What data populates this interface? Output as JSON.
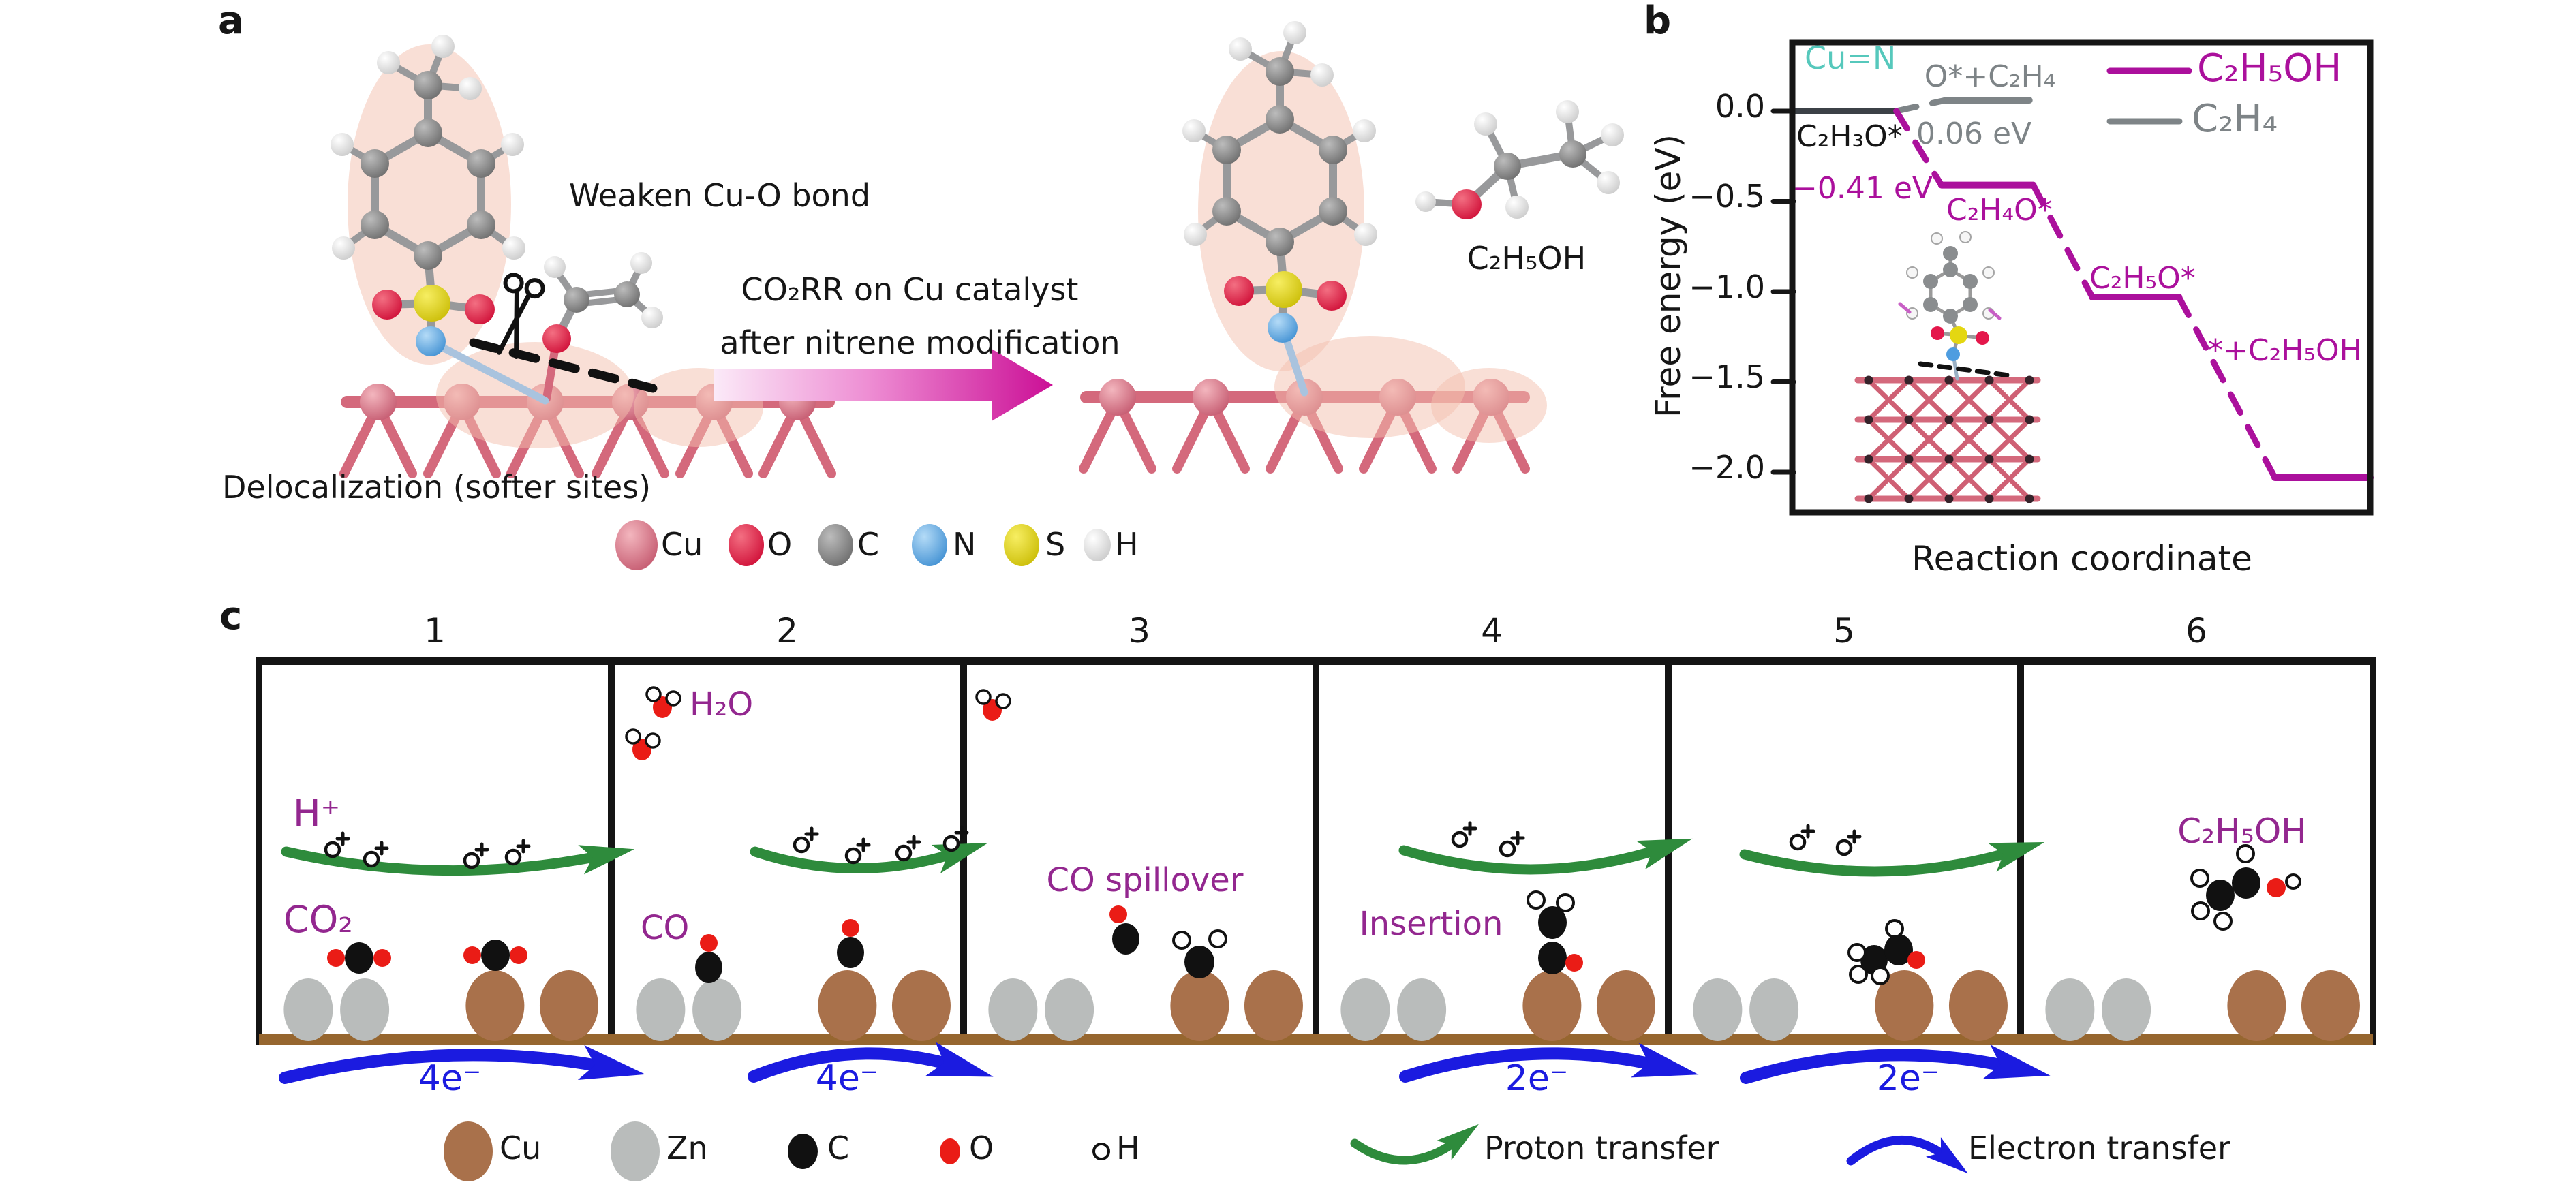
{
  "colors": {
    "purple_label": "#93278f",
    "magenta": "#ab109c",
    "series_gray": "#7e8487",
    "teal": "#56c8bc",
    "electron_blue": "#1b1be0",
    "proton_green": "#2e8b3c",
    "copper_brown": "#a9714b",
    "zinc_gray": "#b9bcbb",
    "ground_brown": "#96662f",
    "oxygen_red": "#ea1c16",
    "carbon_black": "#111111"
  },
  "panel_a": {
    "label": "a",
    "weaken_text": "Weaken Cu-O bond",
    "arrow_text_line1": "CO₂RR on Cu catalyst",
    "arrow_text_line2": "after nitrene modification",
    "delocalization_text": "Delocalization (softer sites)",
    "ethanol_label": "C₂H₅OH",
    "atom_legend": [
      {
        "symbol": "Cu",
        "color": "#d5697e"
      },
      {
        "symbol": "O",
        "color": "#e4174b"
      },
      {
        "symbol": "C",
        "color": "#8a8d8f"
      },
      {
        "symbol": "N",
        "color": "#4e9de0"
      },
      {
        "symbol": "S",
        "color": "#e4d711"
      },
      {
        "symbol": "H",
        "color": "#f4f4f4"
      }
    ]
  },
  "panel_b": {
    "label": "b",
    "ylabel": "Free energy (eV)",
    "xlabel": "Reaction coordinate",
    "annotation_cun": "Cu=N",
    "yticks": [
      "0.0",
      "−0.5",
      "−1.0",
      "−1.5",
      "−2.0"
    ],
    "labels": {
      "c2h3o": "C₂H₃O*",
      "o_c2h4": "O*+C₂H₄",
      "e_006": "0.06 eV",
      "e_041": "−0.41 eV",
      "c2h4o": "C₂H₄O*",
      "c2h5o": "C₂H₅O*",
      "final": "*+C₂H₅OH"
    },
    "legend": [
      {
        "label": "C₂H₅OH",
        "color": "#ab109c"
      },
      {
        "label": "C₂H₄",
        "color": "#7e8487"
      }
    ]
  },
  "panel_c": {
    "label": "c",
    "steps": [
      "1",
      "2",
      "3",
      "4",
      "5",
      "6"
    ],
    "labels": {
      "h_plus": "H⁺",
      "co2": "CO₂",
      "h2o": "H₂O",
      "co": "CO",
      "co_spillover": "CO spillover",
      "insertion": "Insertion",
      "ethanol": "C₂H₅OH"
    },
    "electron_transfers": [
      "4e⁻",
      "4e⁻",
      "2e⁻",
      "2e⁻"
    ],
    "atom_legend": [
      {
        "symbol": "Cu",
        "color": "#a9714b"
      },
      {
        "symbol": "Zn",
        "color": "#b9bcbb"
      },
      {
        "symbol": "C",
        "color": "#111111"
      },
      {
        "symbol": "O",
        "color": "#ea1c16"
      },
      {
        "symbol": "H",
        "color": "#ffffff"
      }
    ],
    "arrow_legend": [
      {
        "label": "Proton transfer",
        "color": "#2e8b3c"
      },
      {
        "label": "Electron transfer",
        "color": "#1b1be0"
      }
    ]
  },
  "chart_data": {
    "type": "line",
    "subtype": "free-energy-level-diagram",
    "title": "",
    "xlabel": "Reaction coordinate",
    "ylabel": "Free energy (eV)",
    "ylim": [
      -2.25,
      0.4
    ],
    "yticks": [
      0.0,
      -0.5,
      -1.0,
      -1.5,
      -2.0
    ],
    "grid": false,
    "legend_position": "top-right",
    "annotations": [
      "Cu=N",
      "0.06 eV",
      "−0.41 eV"
    ],
    "start_level_color": "#3c4147",
    "series": [
      {
        "name": "C₂H₅OH",
        "color": "#ab109c",
        "line_style": "solid levels, dashed connectors",
        "levels": [
          {
            "label": "C₂H₃O*",
            "energy_eV": 0.0,
            "x_frac": [
              0.0,
              0.18
            ]
          },
          {
            "label": "C₂H₄O*",
            "energy_eV": -0.41,
            "x_frac": [
              0.258,
              0.417
            ]
          },
          {
            "label": "C₂H₅O*",
            "energy_eV": -1.03,
            "x_frac": [
              0.519,
              0.669
            ]
          },
          {
            "label": "*+C₂H₅OH",
            "energy_eV": -2.03,
            "x_frac": [
              0.835,
              1.0
            ]
          }
        ]
      },
      {
        "name": "C₂H₄",
        "color": "#7e8487",
        "line_style": "solid levels, dashed connectors",
        "levels": [
          {
            "label": "C₂H₃O*",
            "energy_eV": 0.0,
            "x_frac": [
              0.0,
              0.18
            ]
          },
          {
            "label": "O*+C₂H₄",
            "energy_eV": 0.06,
            "x_frac": [
              0.265,
              0.41
            ]
          }
        ]
      }
    ]
  }
}
